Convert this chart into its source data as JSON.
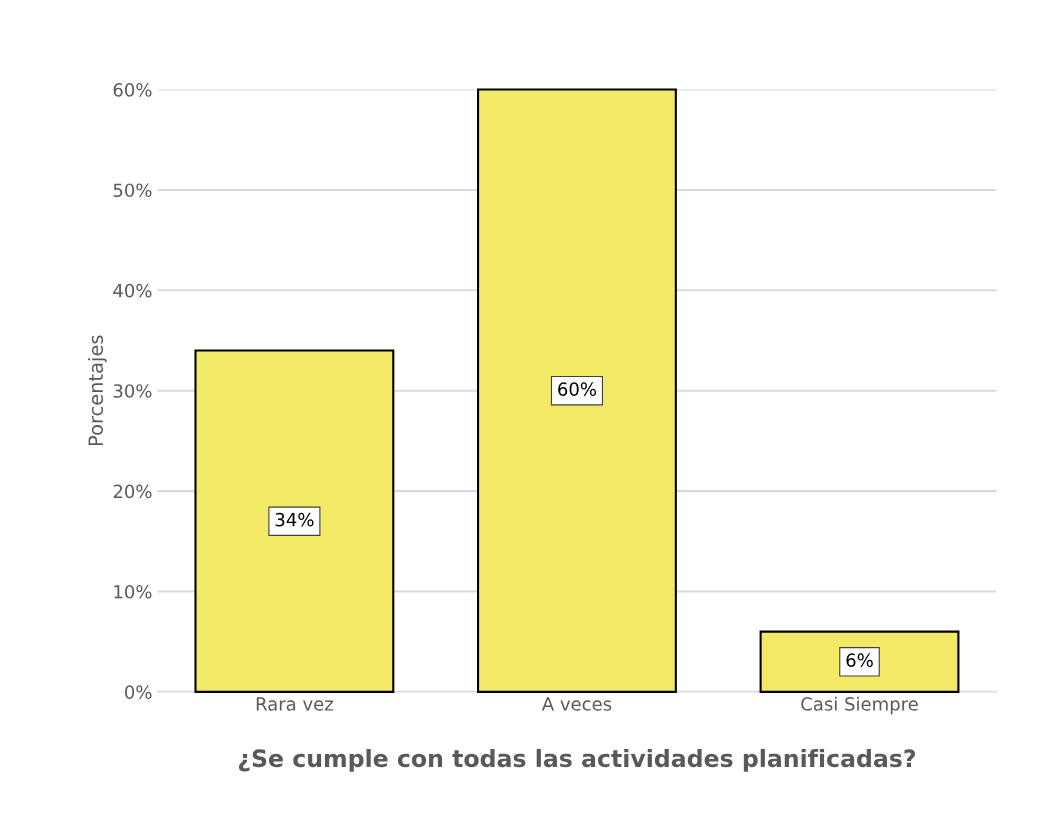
{
  "chart_data": {
    "type": "bar",
    "xlabel": "¿Se cumple con todas las actividades planificadas?",
    "ylabel": "Porcentajes",
    "categories": [
      "Rara vez",
      "A veces",
      "Casi Siempre"
    ],
    "values": [
      34,
      60,
      6
    ],
    "value_labels": [
      "34%",
      "60%",
      "6%"
    ],
    "color": "#f2e967",
    "ylim": [
      0,
      60
    ],
    "yticks": [
      {
        "value": 0,
        "label": "0%"
      },
      {
        "value": 10,
        "label": "10%"
      },
      {
        "value": 20,
        "label": "20%"
      },
      {
        "value": 30,
        "label": "30%"
      },
      {
        "value": 40,
        "label": "40%"
      },
      {
        "value": 50,
        "label": "50%"
      },
      {
        "value": 60,
        "label": "60%"
      }
    ],
    "grid": "y"
  }
}
